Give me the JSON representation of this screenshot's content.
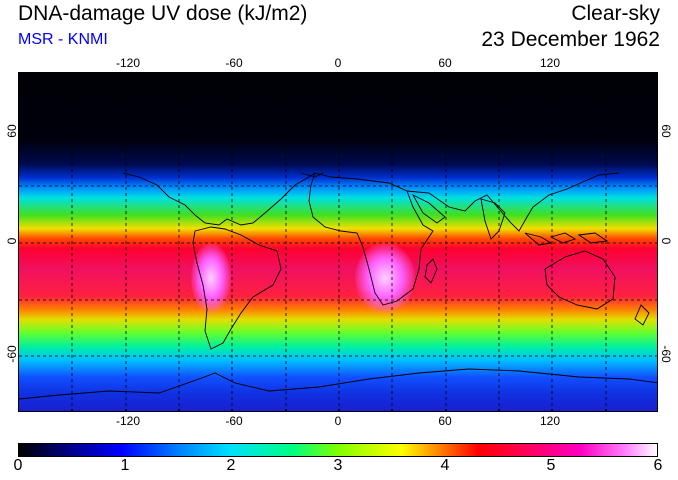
{
  "header": {
    "title": "DNA-damage UV dose (kJ/m2)",
    "source": "MSR - KNMI",
    "sky_condition": "Clear-sky",
    "date": "23 December 1962"
  },
  "map": {
    "lon_ticks": [
      "-120",
      "-60",
      "0",
      "60",
      "120"
    ],
    "lat_ticks": [
      "60",
      "0",
      "-60"
    ]
  },
  "colorbar": {
    "labels": [
      "0",
      "1",
      "2",
      "3",
      "4",
      "5",
      "6"
    ]
  }
}
